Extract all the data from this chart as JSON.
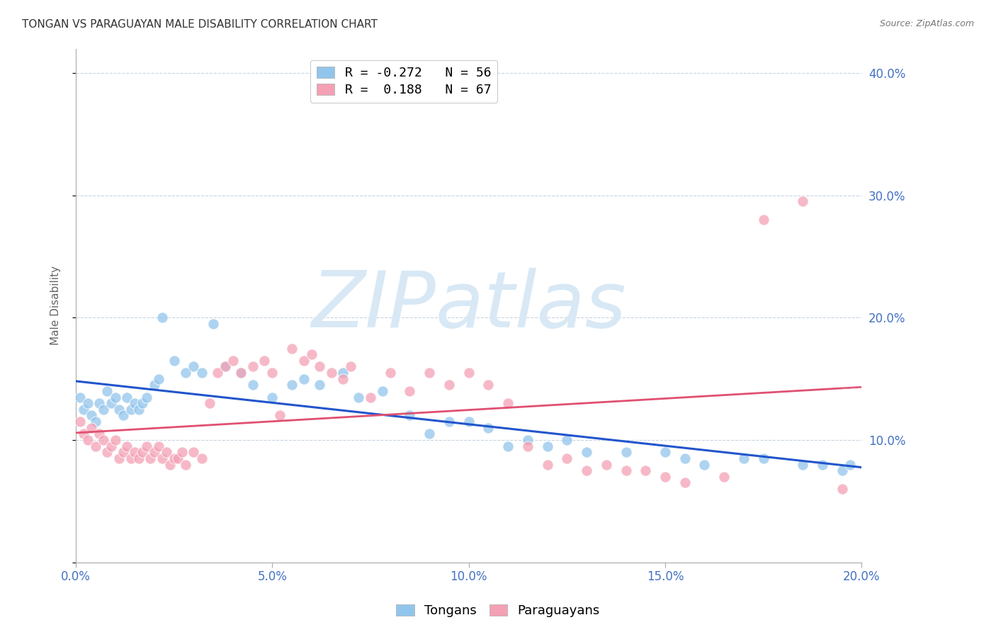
{
  "title": "TONGAN VS PARAGUAYAN MALE DISABILITY CORRELATION CHART",
  "source": "Source: ZipAtlas.com",
  "ylabel": "Male Disability",
  "xlim": [
    0.0,
    0.2
  ],
  "ylim": [
    0.0,
    0.42
  ],
  "yticks": [
    0.0,
    0.1,
    0.2,
    0.3,
    0.4
  ],
  "xticks": [
    0.0,
    0.05,
    0.1,
    0.15,
    0.2
  ],
  "tongans_color": "#92C5EC",
  "paraguayans_color": "#F4A0B5",
  "tongans_R": -0.272,
  "tongans_N": 56,
  "paraguayans_R": 0.188,
  "paraguayans_N": 67,
  "tongans_x": [
    0.001,
    0.002,
    0.003,
    0.004,
    0.005,
    0.006,
    0.007,
    0.008,
    0.009,
    0.01,
    0.011,
    0.012,
    0.013,
    0.014,
    0.015,
    0.016,
    0.017,
    0.018,
    0.02,
    0.021,
    0.022,
    0.025,
    0.028,
    0.03,
    0.032,
    0.035,
    0.038,
    0.042,
    0.045,
    0.05,
    0.055,
    0.058,
    0.062,
    0.068,
    0.072,
    0.078,
    0.085,
    0.09,
    0.095,
    0.1,
    0.105,
    0.11,
    0.115,
    0.12,
    0.125,
    0.13,
    0.14,
    0.15,
    0.155,
    0.16,
    0.17,
    0.175,
    0.185,
    0.19,
    0.195,
    0.197
  ],
  "tongans_y": [
    0.135,
    0.125,
    0.13,
    0.12,
    0.115,
    0.13,
    0.125,
    0.14,
    0.13,
    0.135,
    0.125,
    0.12,
    0.135,
    0.125,
    0.13,
    0.125,
    0.13,
    0.135,
    0.145,
    0.15,
    0.2,
    0.165,
    0.155,
    0.16,
    0.155,
    0.195,
    0.16,
    0.155,
    0.145,
    0.135,
    0.145,
    0.15,
    0.145,
    0.155,
    0.135,
    0.14,
    0.12,
    0.105,
    0.115,
    0.115,
    0.11,
    0.095,
    0.1,
    0.095,
    0.1,
    0.09,
    0.09,
    0.09,
    0.085,
    0.08,
    0.085,
    0.085,
    0.08,
    0.08,
    0.075,
    0.08
  ],
  "paraguayans_x": [
    0.001,
    0.002,
    0.003,
    0.004,
    0.005,
    0.006,
    0.007,
    0.008,
    0.009,
    0.01,
    0.011,
    0.012,
    0.013,
    0.014,
    0.015,
    0.016,
    0.017,
    0.018,
    0.019,
    0.02,
    0.021,
    0.022,
    0.023,
    0.024,
    0.025,
    0.026,
    0.027,
    0.028,
    0.03,
    0.032,
    0.034,
    0.036,
    0.038,
    0.04,
    0.042,
    0.045,
    0.048,
    0.05,
    0.052,
    0.055,
    0.058,
    0.06,
    0.062,
    0.065,
    0.068,
    0.07,
    0.075,
    0.08,
    0.085,
    0.09,
    0.095,
    0.1,
    0.105,
    0.11,
    0.115,
    0.12,
    0.125,
    0.13,
    0.135,
    0.14,
    0.145,
    0.15,
    0.155,
    0.165,
    0.175,
    0.185,
    0.195
  ],
  "paraguayans_y": [
    0.115,
    0.105,
    0.1,
    0.11,
    0.095,
    0.105,
    0.1,
    0.09,
    0.095,
    0.1,
    0.085,
    0.09,
    0.095,
    0.085,
    0.09,
    0.085,
    0.09,
    0.095,
    0.085,
    0.09,
    0.095,
    0.085,
    0.09,
    0.08,
    0.085,
    0.085,
    0.09,
    0.08,
    0.09,
    0.085,
    0.13,
    0.155,
    0.16,
    0.165,
    0.155,
    0.16,
    0.165,
    0.155,
    0.12,
    0.175,
    0.165,
    0.17,
    0.16,
    0.155,
    0.15,
    0.16,
    0.135,
    0.155,
    0.14,
    0.155,
    0.145,
    0.155,
    0.145,
    0.13,
    0.095,
    0.08,
    0.085,
    0.075,
    0.08,
    0.075,
    0.075,
    0.07,
    0.065,
    0.07,
    0.28,
    0.295,
    0.06
  ],
  "watermark_text": "ZIPatlas",
  "watermark_color": "#D8E8F5",
  "axis_color": "#4472C4",
  "grid_color": "#C8D4E0",
  "title_fontsize": 11,
  "source_fontsize": 9
}
